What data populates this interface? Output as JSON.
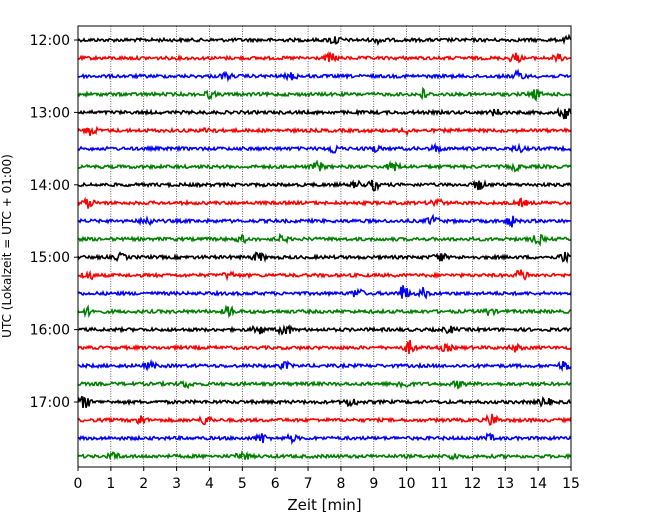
{
  "chart_data": {
    "type": "line",
    "subtype": "helicorder",
    "xlabel": "Zeit  [min]",
    "ylabel": "UTC (Lokalzeit = UTC + 01:00)",
    "xlim": [
      0,
      15
    ],
    "x_ticks": [
      "0",
      "1",
      "2",
      "3",
      "4",
      "5",
      "6",
      "7",
      "8",
      "9",
      "10",
      "11",
      "12",
      "13",
      "14",
      "15"
    ],
    "y_tick_labels": [
      "12:00",
      "13:00",
      "14:00",
      "15:00",
      "16:00",
      "17:00"
    ],
    "grid": "vertical dotted lines at each minute",
    "line_colors": [
      "#000000",
      "#ff0000",
      "#0000ff",
      "#008000"
    ],
    "trace_start_times": [
      "12:00",
      "12:15",
      "12:30",
      "12:45",
      "13:00",
      "13:15",
      "13:30",
      "13:45",
      "14:00",
      "14:15",
      "14:30",
      "14:45",
      "15:00",
      "15:15",
      "15:30",
      "15:45",
      "16:00",
      "16:15",
      "16:30",
      "16:45",
      "17:00",
      "17:15",
      "17:30",
      "17:45"
    ],
    "series": [
      {
        "start": "12:00",
        "events": [
          [
            7.8,
            3
          ],
          [
            9.2,
            2
          ],
          [
            15.0,
            3
          ]
        ]
      },
      {
        "start": "12:15",
        "events": [
          [
            7.7,
            3
          ],
          [
            13.3,
            3
          ],
          [
            14.6,
            2
          ]
        ]
      },
      {
        "start": "12:30",
        "events": [
          [
            4.5,
            2
          ],
          [
            6.5,
            2
          ],
          [
            13.4,
            3
          ]
        ]
      },
      {
        "start": "12:45",
        "events": [
          [
            4.0,
            2
          ],
          [
            10.5,
            3
          ],
          [
            13.9,
            3
          ]
        ]
      },
      {
        "start": "13:00",
        "events": [
          [
            12.7,
            2
          ],
          [
            14.8,
            4
          ]
        ]
      },
      {
        "start": "13:15",
        "events": [
          [
            0.4,
            3
          ],
          [
            4.0,
            2
          ],
          [
            10.0,
            2
          ]
        ]
      },
      {
        "start": "13:30",
        "events": [
          [
            7.8,
            3
          ],
          [
            9.0,
            2
          ],
          [
            10.9,
            2
          ],
          [
            13.4,
            2
          ]
        ]
      },
      {
        "start": "13:45",
        "events": [
          [
            7.3,
            3
          ],
          [
            9.6,
            3
          ],
          [
            13.3,
            2
          ]
        ]
      },
      {
        "start": "14:00",
        "events": [
          [
            8.5,
            2
          ],
          [
            9.0,
            3
          ],
          [
            12.2,
            3
          ]
        ]
      },
      {
        "start": "14:15",
        "events": [
          [
            0.3,
            3
          ],
          [
            10.9,
            3
          ],
          [
            13.5,
            2
          ]
        ]
      },
      {
        "start": "14:30",
        "events": [
          [
            2.1,
            3
          ],
          [
            10.8,
            3
          ],
          [
            13.2,
            3
          ]
        ]
      },
      {
        "start": "14:45",
        "events": [
          [
            5.0,
            2
          ],
          [
            6.2,
            2
          ],
          [
            14.0,
            3
          ]
        ]
      },
      {
        "start": "15:00",
        "events": [
          [
            1.3,
            2
          ],
          [
            5.5,
            3
          ],
          [
            11.0,
            3
          ],
          [
            14.8,
            3
          ]
        ]
      },
      {
        "start": "15:15",
        "events": [
          [
            0.3,
            3
          ],
          [
            4.6,
            2
          ],
          [
            13.5,
            4
          ]
        ]
      },
      {
        "start": "15:30",
        "events": [
          [
            8.5,
            3
          ],
          [
            9.9,
            5
          ],
          [
            10.5,
            3
          ]
        ]
      },
      {
        "start": "15:45",
        "events": [
          [
            0.3,
            2
          ],
          [
            4.6,
            3
          ],
          [
            12.5,
            2
          ]
        ]
      },
      {
        "start": "16:00",
        "events": [
          [
            5.5,
            3
          ],
          [
            6.3,
            4
          ],
          [
            11.3,
            2
          ]
        ]
      },
      {
        "start": "16:15",
        "events": [
          [
            10.1,
            4
          ],
          [
            11.2,
            2
          ],
          [
            13.3,
            2
          ]
        ]
      },
      {
        "start": "16:30",
        "events": [
          [
            2.2,
            2
          ],
          [
            6.3,
            2
          ],
          [
            14.8,
            3
          ]
        ]
      },
      {
        "start": "16:45",
        "events": [
          [
            3.3,
            2
          ],
          [
            9.9,
            3
          ],
          [
            11.6,
            2
          ]
        ]
      },
      {
        "start": "17:00",
        "events": [
          [
            0.2,
            4
          ],
          [
            8.3,
            3
          ],
          [
            14.2,
            3
          ]
        ]
      },
      {
        "start": "17:15",
        "events": [
          [
            1.9,
            3
          ],
          [
            3.9,
            3
          ],
          [
            12.6,
            4
          ]
        ]
      },
      {
        "start": "17:30",
        "events": [
          [
            5.6,
            3
          ],
          [
            6.5,
            2
          ],
          [
            12.5,
            2
          ]
        ]
      },
      {
        "start": "17:45",
        "events": [
          [
            1.1,
            2
          ],
          [
            5.0,
            3
          ],
          [
            11.4,
            2
          ]
        ]
      }
    ]
  }
}
